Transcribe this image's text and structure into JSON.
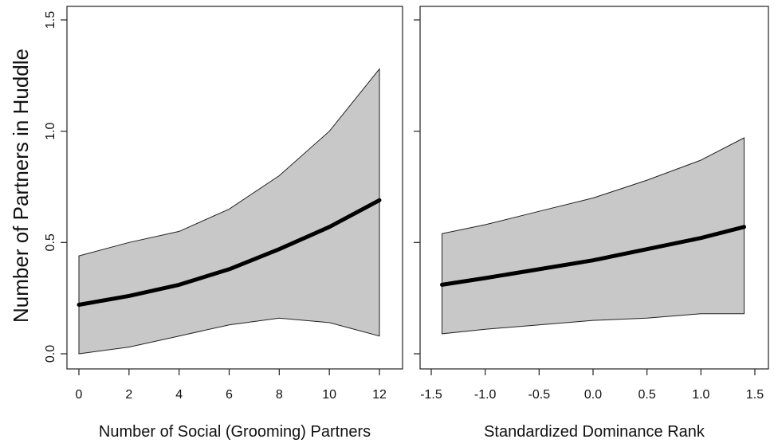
{
  "figure": {
    "ylabel": "Number of Partners in Huddle"
  },
  "chart_data": [
    {
      "type": "line",
      "title": "",
      "xlabel": "Number of Social (Grooming) Partners",
      "ylabel": "Number of Partners in Huddle",
      "xlim": [
        0,
        12
      ],
      "ylim": [
        0,
        1.5
      ],
      "xticks": [
        "0",
        "2",
        "4",
        "6",
        "8",
        "10",
        "12"
      ],
      "yticks": [
        "0.0",
        "0.5",
        "1.0",
        "1.5"
      ],
      "grid": false,
      "legend": "none",
      "colors": {
        "band": "#c8c8c8",
        "line": "#000000"
      },
      "series": [
        {
          "x": [
            0,
            2,
            4,
            6,
            8,
            10,
            12
          ],
          "y": [
            0.22,
            0.26,
            0.31,
            0.38,
            0.47,
            0.57,
            0.69
          ],
          "lower": [
            0.0,
            0.03,
            0.08,
            0.13,
            0.16,
            0.14,
            0.08
          ],
          "upper": [
            0.44,
            0.5,
            0.55,
            0.65,
            0.8,
            1.0,
            1.28
          ]
        }
      ]
    },
    {
      "type": "line",
      "title": "",
      "xlabel": "Standardized Dominance Rank",
      "ylabel": "",
      "xlim": [
        -1.6,
        1.5
      ],
      "ylim": [
        0,
        1.5
      ],
      "xticks": [
        "-1.5",
        "-1.0",
        "-0.5",
        "0.0",
        "0.5",
        "1.0",
        "1.5"
      ],
      "yticks": [],
      "grid": false,
      "legend": "none",
      "colors": {
        "band": "#c8c8c8",
        "line": "#000000"
      },
      "series": [
        {
          "x": [
            -1.4,
            -1.0,
            -0.5,
            0.0,
            0.5,
            1.0,
            1.4
          ],
          "y": [
            0.31,
            0.34,
            0.38,
            0.42,
            0.47,
            0.52,
            0.57
          ],
          "lower": [
            0.09,
            0.11,
            0.13,
            0.15,
            0.16,
            0.18,
            0.18
          ],
          "upper": [
            0.54,
            0.58,
            0.64,
            0.7,
            0.78,
            0.87,
            0.97
          ]
        }
      ]
    }
  ]
}
